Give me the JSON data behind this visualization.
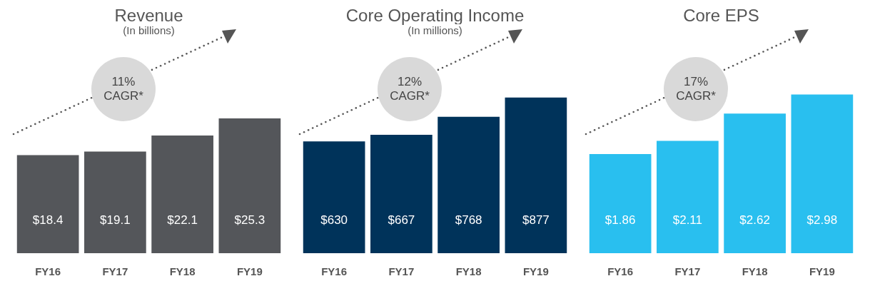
{
  "chart_data": [
    {
      "type": "bar",
      "title": "Revenue",
      "subtitle": "(In billions)",
      "categories": [
        "FY16",
        "FY17",
        "FY18",
        "FY19"
      ],
      "values": [
        18.4,
        19.1,
        22.1,
        25.3
      ],
      "value_labels": [
        "$18.4",
        "$19.1",
        "$22.1",
        "$25.3"
      ],
      "color": "#54565a",
      "annotations": [
        "11% CAGR*"
      ]
    },
    {
      "type": "bar",
      "title": "Core Operating Income",
      "subtitle": "(In millions)",
      "categories": [
        "FY16",
        "FY17",
        "FY18",
        "FY19"
      ],
      "values": [
        630,
        667,
        768,
        877
      ],
      "value_labels": [
        "$630",
        "$667",
        "$768",
        "$877"
      ],
      "color": "#00335a",
      "annotations": [
        "12% CAGR*"
      ]
    },
    {
      "type": "bar",
      "title": "Core EPS",
      "categories": [
        "FY16",
        "FY17",
        "FY18",
        "FY19"
      ],
      "values": [
        1.86,
        2.11,
        2.62,
        2.98
      ],
      "value_labels": [
        "$1.86",
        "$2.11",
        "$2.62",
        "$2.98"
      ],
      "color": "#29bfef",
      "annotations": [
        "17% CAGR*"
      ]
    }
  ]
}
